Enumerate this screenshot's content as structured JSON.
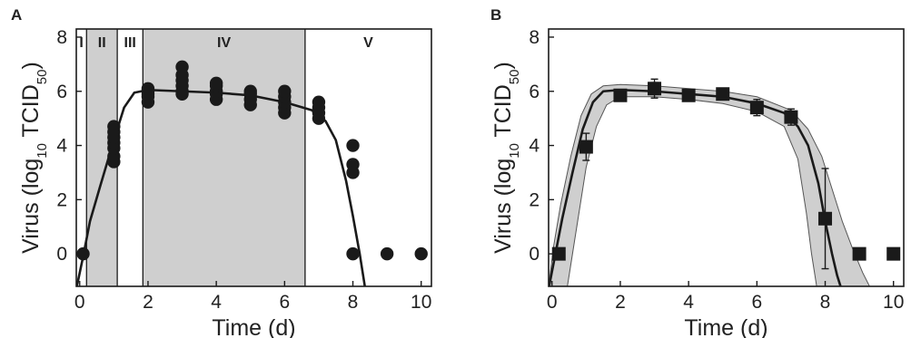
{
  "figure": {
    "panels": [
      "A",
      "B"
    ]
  },
  "chart_data": [
    {
      "type": "scatter",
      "panel": "A",
      "xlabel": "Time (d)",
      "ylabel": {
        "prefix": "Virus (log",
        "sub1": "10",
        "mid": " TCID",
        "sub2": "50",
        "suffix": ")"
      },
      "xlim": [
        -0.1,
        10.3
      ],
      "ylim": [
        -1.2,
        8.3
      ],
      "xticks": [
        0,
        2,
        4,
        6,
        8,
        10
      ],
      "yticks": [
        0,
        2,
        4,
        6,
        8
      ],
      "grid": false,
      "phases": [
        {
          "label": "I",
          "x0": -0.1,
          "x1": 0.2,
          "shaded": false
        },
        {
          "label": "II",
          "x0": 0.2,
          "x1": 1.1,
          "shaded": true
        },
        {
          "label": "III",
          "x0": 1.1,
          "x1": 1.85,
          "shaded": false
        },
        {
          "label": "IV",
          "x0": 1.85,
          "x1": 6.6,
          "shaded": true
        },
        {
          "label": "V",
          "x0": 6.6,
          "x1": 10.3,
          "shaded": false
        }
      ],
      "points": [
        [
          0.1,
          0
        ],
        [
          1,
          3.4
        ],
        [
          1,
          3.6
        ],
        [
          1,
          3.9
        ],
        [
          1,
          4.1
        ],
        [
          1,
          4.3
        ],
        [
          1,
          4.5
        ],
        [
          1,
          4.7
        ],
        [
          2,
          5.6
        ],
        [
          2,
          5.8
        ],
        [
          2,
          5.9
        ],
        [
          2,
          6.0
        ],
        [
          2,
          6.1
        ],
        [
          3,
          6.0
        ],
        [
          3,
          6.2
        ],
        [
          3,
          6.4
        ],
        [
          3,
          6.6
        ],
        [
          3,
          6.9
        ],
        [
          3,
          5.9
        ],
        [
          4,
          5.7
        ],
        [
          4,
          5.9
        ],
        [
          4,
          6.0
        ],
        [
          4,
          6.2
        ],
        [
          4,
          6.3
        ],
        [
          5,
          5.5
        ],
        [
          5,
          5.7
        ],
        [
          5,
          5.9
        ],
        [
          5,
          6.0
        ],
        [
          6,
          5.2
        ],
        [
          6,
          5.4
        ],
        [
          6,
          5.6
        ],
        [
          6,
          5.8
        ],
        [
          6,
          6.0
        ],
        [
          7,
          5.0
        ],
        [
          7,
          5.2
        ],
        [
          7,
          5.4
        ],
        [
          7,
          5.6
        ],
        [
          8,
          4.0
        ],
        [
          8,
          3.3
        ],
        [
          8,
          3.0
        ],
        [
          8,
          0
        ],
        [
          9,
          0
        ],
        [
          10,
          0
        ]
      ],
      "fit_curve": {
        "x": [
          -0.1,
          0.1,
          0.3,
          0.6,
          1.0,
          1.3,
          1.6,
          2.0,
          3.0,
          4.0,
          5.0,
          6.0,
          6.8,
          7.2,
          7.5,
          7.8,
          8.0,
          8.2,
          8.3,
          8.35
        ],
        "y": [
          -1.3,
          -0.1,
          1.2,
          2.5,
          4.2,
          5.4,
          5.95,
          6.05,
          6.0,
          5.95,
          5.85,
          5.6,
          5.3,
          4.9,
          4.2,
          2.7,
          1.4,
          0.0,
          -0.8,
          -1.2
        ]
      }
    },
    {
      "type": "line",
      "panel": "B",
      "xlabel": "Time (d)",
      "ylabel": {
        "prefix": "Virus (log",
        "sub1": "10",
        "mid": " TCID",
        "sub2": "50",
        "suffix": ")"
      },
      "xlim": [
        -0.1,
        10.3
      ],
      "ylim": [
        -1.2,
        8.3
      ],
      "xticks": [
        0,
        2,
        4,
        6,
        8,
        10
      ],
      "yticks": [
        0,
        2,
        4,
        6,
        8
      ],
      "grid": false,
      "means": [
        {
          "x": 0.2,
          "y": 0,
          "err": 0
        },
        {
          "x": 1,
          "y": 3.95,
          "err": 0.5
        },
        {
          "x": 2,
          "y": 5.85,
          "err": 0.2
        },
        {
          "x": 3,
          "y": 6.1,
          "err": 0.35
        },
        {
          "x": 4,
          "y": 5.85,
          "err": 0.15
        },
        {
          "x": 5,
          "y": 5.9,
          "err": 0.1
        },
        {
          "x": 6,
          "y": 5.4,
          "err": 0.3
        },
        {
          "x": 7,
          "y": 5.05,
          "err": 0.3
        },
        {
          "x": 8,
          "y": 1.3,
          "err": 1.85
        },
        {
          "x": 9,
          "y": 0,
          "err": 0
        },
        {
          "x": 10,
          "y": 0,
          "err": 0
        }
      ],
      "fit_curve": {
        "x": [
          -0.1,
          0.1,
          0.3,
          0.6,
          0.9,
          1.2,
          1.5,
          2.0,
          3.0,
          4.0,
          5.0,
          6.0,
          6.8,
          7.2,
          7.5,
          7.8,
          8.0,
          8.2,
          8.35,
          8.45
        ],
        "y": [
          -1.3,
          0.0,
          1.3,
          3.0,
          4.6,
          5.6,
          6.0,
          6.05,
          6.0,
          5.9,
          5.8,
          5.55,
          5.2,
          4.7,
          4.0,
          2.6,
          1.2,
          0.0,
          -0.8,
          -1.2
        ]
      },
      "band_upper": {
        "x": [
          -0.1,
          0.05,
          0.25,
          0.55,
          0.85,
          1.15,
          1.5,
          2.0,
          3.0,
          4.0,
          5.0,
          6.0,
          7.0,
          7.5,
          7.9,
          8.2,
          8.5,
          8.8,
          9.1,
          9.3
        ],
        "y": [
          -1.2,
          0.3,
          1.8,
          3.6,
          5.1,
          5.9,
          6.2,
          6.25,
          6.2,
          6.1,
          6.0,
          5.8,
          5.3,
          4.6,
          3.6,
          2.4,
          1.2,
          0.2,
          -0.7,
          -1.2
        ]
      },
      "band_lower": {
        "x": [
          0.45,
          0.6,
          0.8,
          1.0,
          1.3,
          1.6,
          2.0,
          3.0,
          4.0,
          5.0,
          6.0,
          6.8,
          7.2,
          7.45,
          7.6,
          7.7,
          7.75
        ],
        "y": [
          -1.2,
          0.0,
          1.6,
          3.2,
          4.7,
          5.5,
          5.8,
          5.8,
          5.7,
          5.55,
          5.25,
          4.7,
          3.5,
          1.5,
          0.0,
          -0.8,
          -1.2
        ]
      }
    }
  ]
}
